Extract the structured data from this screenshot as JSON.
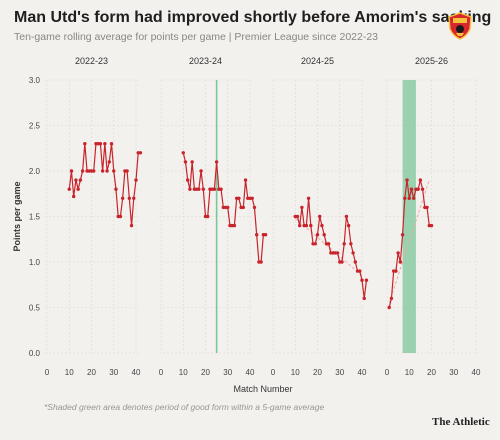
{
  "title": "Man Utd's form had improved shortly before Amorim's sacking",
  "subtitle": "Ten-game rolling average for points per game | Premier League since 2022-23",
  "footnote": "*Shaded green area denotes period of good form within a 5-game average",
  "brand": "The Athletic",
  "logo_icon": "man-utd-crest",
  "colors": {
    "line": "#c8242b",
    "highlight": "#7cc79a",
    "trend": "#f0a8a8"
  },
  "chart_data": {
    "type": "line",
    "xlabel": "Match Number",
    "ylabel": "Points per game",
    "xlim": [
      0,
      40
    ],
    "ylim": [
      0,
      3
    ],
    "xticks": [
      "0",
      "10",
      "20",
      "30",
      "40"
    ],
    "yticks": [
      "0.0",
      "0.5",
      "1.0",
      "1.5",
      "2.0",
      "2.5",
      "3.0"
    ],
    "grid": true,
    "panels": [
      {
        "season": "2022-23",
        "x_start": 10,
        "values": [
          1.8,
          2.0,
          1.72,
          1.9,
          1.8,
          1.9,
          2.0,
          2.3,
          2.0,
          2.0,
          2.0,
          2.0,
          2.3,
          2.3,
          2.3,
          2.0,
          2.3,
          2.0,
          2.1,
          2.3,
          2.0,
          1.8,
          1.5,
          1.5,
          1.7,
          2.0,
          2.0,
          1.7,
          1.4,
          1.7,
          1.9,
          2.2,
          2.2
        ],
        "vline": null,
        "shade": null
      },
      {
        "season": "2023-24",
        "x_start": 10,
        "values": [
          2.2,
          2.1,
          1.9,
          1.8,
          2.1,
          1.8,
          1.8,
          1.8,
          2.0,
          1.8,
          1.5,
          1.5,
          1.8,
          1.8,
          1.8,
          2.1,
          1.8,
          1.8,
          1.6,
          1.6,
          1.6,
          1.4,
          1.4,
          1.4,
          1.7,
          1.7,
          1.6,
          1.6,
          1.9,
          1.7,
          1.7,
          1.7,
          1.6,
          1.3,
          1.0,
          1.0,
          1.3,
          1.3
        ],
        "vline": 25,
        "shade": null
      },
      {
        "season": "2024-25",
        "x_start": 10,
        "values": [
          1.5,
          1.5,
          1.4,
          1.6,
          1.4,
          1.4,
          1.7,
          1.4,
          1.2,
          1.2,
          1.3,
          1.5,
          1.4,
          1.3,
          1.2,
          1.2,
          1.1,
          1.1,
          1.1,
          1.1,
          1.0,
          1.0,
          1.2,
          1.5,
          1.4,
          1.2,
          1.1,
          1.0,
          0.9,
          0.9,
          0.8,
          0.6,
          0.8
        ],
        "vline": null,
        "shade": null,
        "trend": [
          [
            10,
            1.48
          ],
          [
            40,
            0.85
          ]
        ]
      },
      {
        "season": "2025-26",
        "x_start": 1,
        "values": [
          0.5,
          0.6,
          0.9,
          0.9,
          1.1,
          1.0,
          1.3,
          1.7,
          1.9,
          1.7,
          1.8,
          1.7,
          1.8,
          1.8,
          1.9,
          1.8,
          1.6,
          1.6,
          1.4,
          1.4
        ],
        "vline": null,
        "shade": [
          7,
          13
        ],
        "trend": [
          [
            1,
            0.55
          ],
          [
            19,
            1.9
          ]
        ]
      }
    ]
  }
}
